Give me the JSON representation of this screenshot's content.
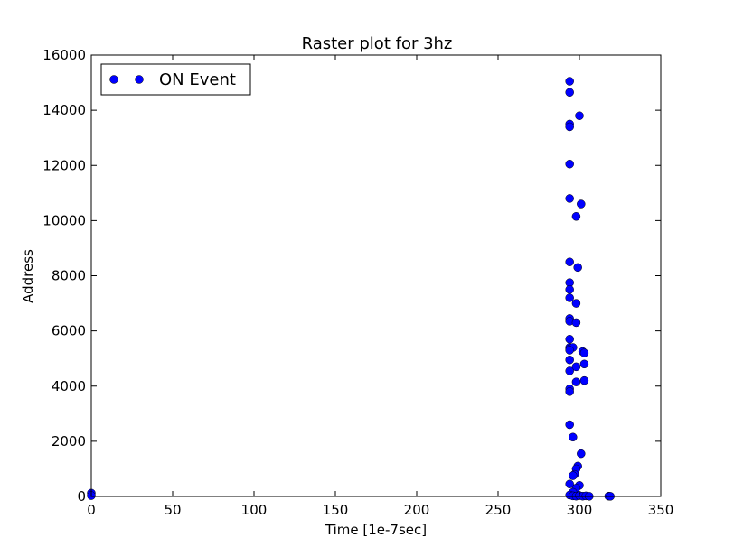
{
  "chart_data": {
    "type": "scatter",
    "title": "Raster plot for 3hz",
    "xlabel": "Time [1e-7sec]",
    "ylabel": "Address",
    "xlim": [
      0,
      350
    ],
    "ylim": [
      0,
      16000
    ],
    "xticks": [
      0,
      50,
      100,
      150,
      200,
      250,
      300,
      350
    ],
    "xtick_labels": [
      "0",
      "50",
      "100",
      "150",
      "200",
      "250",
      "300",
      "350"
    ],
    "yticks": [
      0,
      2000,
      4000,
      6000,
      8000,
      10000,
      12000,
      14000,
      16000
    ],
    "ytick_labels": [
      "0",
      "2000",
      "4000",
      "6000",
      "8000",
      "10000",
      "12000",
      "14000",
      "16000"
    ],
    "grid": false,
    "legend_position": "top-left",
    "series": [
      {
        "name": "ON Event",
        "color": "#0000ff",
        "marker": "circle",
        "points": [
          [
            0,
            120
          ],
          [
            0,
            30
          ],
          [
            294,
            15050
          ],
          [
            294,
            14650
          ],
          [
            294,
            13500
          ],
          [
            294,
            13400
          ],
          [
            300,
            13800
          ],
          [
            294,
            12050
          ],
          [
            294,
            10800
          ],
          [
            301,
            10600
          ],
          [
            298,
            10150
          ],
          [
            294,
            8500
          ],
          [
            299,
            8300
          ],
          [
            294,
            7750
          ],
          [
            294,
            7500
          ],
          [
            294,
            7200
          ],
          [
            298,
            7000
          ],
          [
            294,
            6450
          ],
          [
            294,
            6350
          ],
          [
            298,
            6300
          ],
          [
            294,
            5700
          ],
          [
            294,
            5400
          ],
          [
            294,
            5350
          ],
          [
            296,
            5400
          ],
          [
            294,
            5300
          ],
          [
            302,
            5250
          ],
          [
            303,
            5200
          ],
          [
            294,
            4950
          ],
          [
            303,
            4800
          ],
          [
            298,
            4700
          ],
          [
            294,
            4550
          ],
          [
            303,
            4200
          ],
          [
            298,
            4150
          ],
          [
            294,
            3900
          ],
          [
            294,
            3800
          ],
          [
            294,
            2600
          ],
          [
            296,
            2150
          ],
          [
            301,
            1550
          ],
          [
            299,
            1100
          ],
          [
            298,
            1000
          ],
          [
            297,
            800
          ],
          [
            296,
            750
          ],
          [
            294,
            450
          ],
          [
            300,
            400
          ],
          [
            298,
            300
          ],
          [
            296,
            150
          ],
          [
            294,
            50
          ],
          [
            296,
            20
          ],
          [
            298,
            10
          ],
          [
            300,
            30
          ],
          [
            302,
            10
          ],
          [
            304,
            20
          ],
          [
            306,
            5
          ],
          [
            318,
            10
          ],
          [
            319,
            5
          ]
        ]
      }
    ]
  }
}
